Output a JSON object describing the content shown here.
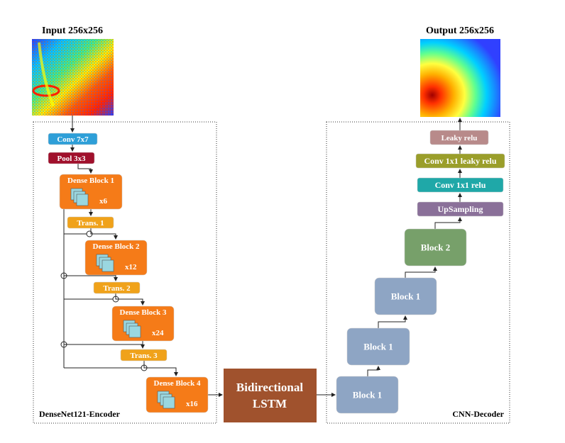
{
  "input_title": "Input 256x256",
  "output_title": "Output 256x256",
  "encoder": {
    "label": "DenseNet121-Encoder",
    "nodes": [
      {
        "label": "Conv 7x7"
      },
      {
        "label": "Pool 3x3"
      },
      {
        "label": "Dense Block 1",
        "repeat": "x6"
      },
      {
        "label": "Trans. 1"
      },
      {
        "label": "Dense Block 2",
        "repeat": "x12"
      },
      {
        "label": "Trans. 2"
      },
      {
        "label": "Dense Block 3",
        "repeat": "x24"
      },
      {
        "label": "Trans. 3"
      },
      {
        "label": "Dense Block 4",
        "repeat": "x16"
      }
    ]
  },
  "lstm": {
    "lines": [
      "Bidirectional",
      "LSTM"
    ]
  },
  "decoder": {
    "label": "CNN-Decoder",
    "nodes": [
      {
        "label": "Block 1"
      },
      {
        "label": "Block 1"
      },
      {
        "label": "Block 1"
      },
      {
        "label": "Block 2"
      },
      {
        "label": "UpSampling"
      },
      {
        "label": "Conv 1x1 relu"
      },
      {
        "label": "Conv 1x1 leaky relu"
      },
      {
        "label": "Leaky relu"
      }
    ]
  }
}
